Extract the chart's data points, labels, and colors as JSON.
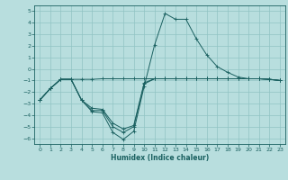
{
  "xlabel": "Humidex (Indice chaleur)",
  "bg_color": "#b8dede",
  "grid_color": "#90c4c4",
  "line_color": "#1a6060",
  "xlim": [
    -0.5,
    23.5
  ],
  "ylim": [
    -6.5,
    5.5
  ],
  "xticks": [
    0,
    1,
    2,
    3,
    4,
    5,
    6,
    7,
    8,
    9,
    10,
    11,
    12,
    13,
    14,
    15,
    16,
    17,
    18,
    19,
    20,
    21,
    22,
    23
  ],
  "yticks": [
    -6,
    -5,
    -4,
    -3,
    -2,
    -1,
    0,
    1,
    2,
    3,
    4,
    5
  ],
  "series": [
    {
      "x": [
        0,
        1,
        2,
        3,
        4,
        5,
        6,
        7,
        8,
        9,
        10,
        11,
        12,
        13,
        14,
        15,
        16,
        17,
        18,
        19,
        20,
        21,
        22,
        23
      ],
      "y": [
        -2.7,
        -1.7,
        -0.9,
        -0.9,
        -0.9,
        -0.9,
        -0.85,
        -0.85,
        -0.85,
        -0.85,
        -0.85,
        -0.85,
        -0.85,
        -0.85,
        -0.85,
        -0.85,
        -0.85,
        -0.85,
        -0.85,
        -0.85,
        -0.85,
        -0.85,
        -0.9,
        -1.0
      ]
    },
    {
      "x": [
        0,
        1,
        2,
        3,
        4,
        5,
        6,
        7,
        8,
        9,
        10,
        11,
        12,
        13,
        14,
        15,
        16,
        17,
        18,
        19,
        20,
        21,
        22,
        23
      ],
      "y": [
        -2.7,
        -1.7,
        -0.9,
        -0.9,
        -2.7,
        -3.7,
        -3.8,
        -5.5,
        -6.1,
        -5.4,
        -1.5,
        2.1,
        4.8,
        4.3,
        4.3,
        2.6,
        1.2,
        0.2,
        -0.3,
        -0.7,
        -0.85,
        -0.85,
        -0.9,
        -1.0
      ]
    },
    {
      "x": [
        0,
        1,
        2,
        3,
        4,
        5,
        6,
        7,
        8,
        9,
        10,
        11,
        12,
        13,
        14,
        15,
        16,
        17,
        18,
        19,
        20,
        21,
        22,
        23
      ],
      "y": [
        -2.7,
        -1.7,
        -0.9,
        -0.9,
        -2.7,
        -3.6,
        -3.6,
        -5.0,
        -5.5,
        -5.0,
        -1.3,
        -0.85,
        -0.85,
        -0.85,
        -0.85,
        -0.85,
        -0.85,
        -0.85,
        -0.85,
        -0.85,
        -0.85,
        -0.85,
        -0.9,
        -1.0
      ]
    },
    {
      "x": [
        0,
        1,
        2,
        3,
        4,
        5,
        6,
        7,
        8,
        9,
        10,
        11,
        12,
        13,
        14,
        15,
        16,
        17,
        18,
        19,
        20,
        21,
        22,
        23
      ],
      "y": [
        -2.7,
        -1.7,
        -0.9,
        -0.9,
        -2.7,
        -3.4,
        -3.5,
        -4.7,
        -5.2,
        -4.9,
        -1.2,
        -0.85,
        -0.85,
        -0.85,
        -0.85,
        -0.85,
        -0.85,
        -0.85,
        -0.85,
        -0.85,
        -0.85,
        -0.85,
        -0.9,
        -1.0
      ]
    }
  ]
}
